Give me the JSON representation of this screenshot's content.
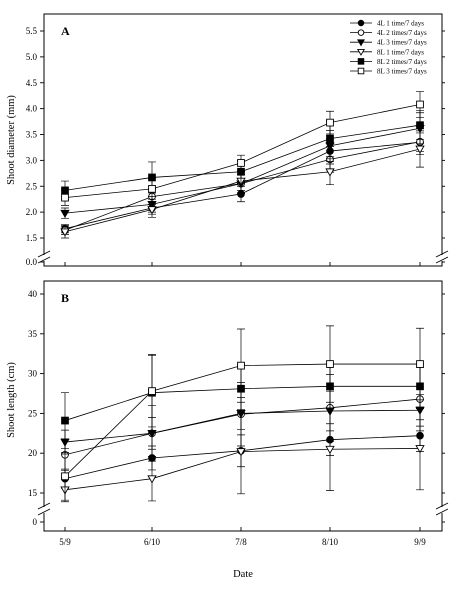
{
  "chart_data": {
    "type": "line",
    "x": [
      "5/9",
      "6/10",
      "7/8",
      "8/10",
      "9/9"
    ],
    "xlabel": "Date",
    "legend": {
      "placement": "top-right",
      "entries": [
        "4L 1 time/7 days",
        "4L 2 times/7 days",
        "4L 3 times/7 days",
        "8L 1 time/7 days",
        "8L 2 times/7 days",
        "8L 3 times/7 days"
      ]
    },
    "panels": [
      {
        "label": "A",
        "ylabel": "Shoot diameter (mm)",
        "ylim": [
          1.3,
          5.7
        ],
        "yticks": [
          "0.0",
          "1.5",
          "2.0",
          "2.5",
          "3.0",
          "3.5",
          "4.0",
          "4.5",
          "5.0",
          "5.5"
        ],
        "axis_break": true,
        "series": [
          {
            "name": "4L 1 time/7 days",
            "marker": "circle-filled",
            "values": [
              1.68,
              2.08,
              2.35,
              3.18,
              3.35
            ],
            "err": [
              0.08,
              0.12,
              0.15,
              0.25,
              0.18
            ]
          },
          {
            "name": "4L 2 times/7 days",
            "marker": "circle-open",
            "values": [
              1.65,
              2.3,
              2.55,
              3.02,
              3.36
            ],
            "err": [
              0.08,
              0.15,
              0.18,
              0.25,
              0.25
            ]
          },
          {
            "name": "4L 3 times/7 days",
            "marker": "triangle-down-filled",
            "values": [
              1.98,
              2.15,
              2.55,
              3.28,
              3.62
            ],
            "err": [
              0.1,
              0.15,
              0.18,
              0.3,
              0.3
            ]
          },
          {
            "name": "8L 1 time/7 days",
            "marker": "triangle-down-open",
            "values": [
              1.62,
              2.05,
              2.6,
              2.78,
              3.22
            ],
            "err": [
              0.12,
              0.15,
              0.18,
              0.25,
              0.35
            ]
          },
          {
            "name": "8L 2 times/7 days",
            "marker": "square-filled",
            "values": [
              2.42,
              2.67,
              2.78,
              3.42,
              3.68
            ],
            "err": [
              0.18,
              0.3,
              0.22,
              0.35,
              0.28
            ]
          },
          {
            "name": "8L 3 times/7 days",
            "marker": "square-open",
            "values": [
              2.28,
              2.45,
              2.95,
              3.73,
              4.08
            ],
            "err": [
              0.15,
              0.2,
              0.15,
              0.22,
              0.25
            ]
          }
        ]
      },
      {
        "label": "B",
        "ylabel": "Shoot length (cm)",
        "ylim": [
          13.5,
          42
        ],
        "yticks": [
          "0",
          "15",
          "20",
          "25",
          "30",
          "35",
          "40"
        ],
        "axis_break": true,
        "series": [
          {
            "name": "4L 1 time/7 days",
            "marker": "circle-filled",
            "values": [
              16.8,
              19.4,
              20.3,
              21.7,
              22.2
            ],
            "err": [
              1.2,
              1.5,
              2.0,
              2.0,
              2.0
            ]
          },
          {
            "name": "4L 2 times/7 days",
            "marker": "circle-open",
            "values": [
              19.8,
              22.5,
              24.9,
              25.7,
              26.8
            ],
            "err": [
              2.0,
              3.5,
              4.0,
              4.2,
              4.0
            ]
          },
          {
            "name": "4L 3 times/7 days",
            "marker": "triangle-down-filled",
            "values": [
              21.4,
              22.5,
              25.0,
              25.3,
              25.4
            ],
            "err": [
              1.5,
              2.0,
              2.0,
              2.5,
              2.0
            ]
          },
          {
            "name": "8L 1 time/7 days",
            "marker": "triangle-down-open",
            "values": [
              15.4,
              16.8,
              20.2,
              20.5,
              20.6
            ],
            "err": [
              1.5,
              2.8,
              5.3,
              5.2,
              5.2
            ]
          },
          {
            "name": "8L 2 times/7 days",
            "marker": "square-filled",
            "values": [
              24.1,
              27.6,
              28.1,
              28.4,
              28.4
            ],
            "err": [
              3.5,
              4.8,
              3.0,
              2.8,
              2.8
            ]
          },
          {
            "name": "8L 3 times/7 days",
            "marker": "square-open",
            "values": [
              17.1,
              27.8,
              31.0,
              31.2,
              31.2
            ],
            "err": [
              3.0,
              4.5,
              4.6,
              4.8,
              4.5
            ]
          }
        ]
      }
    ]
  }
}
